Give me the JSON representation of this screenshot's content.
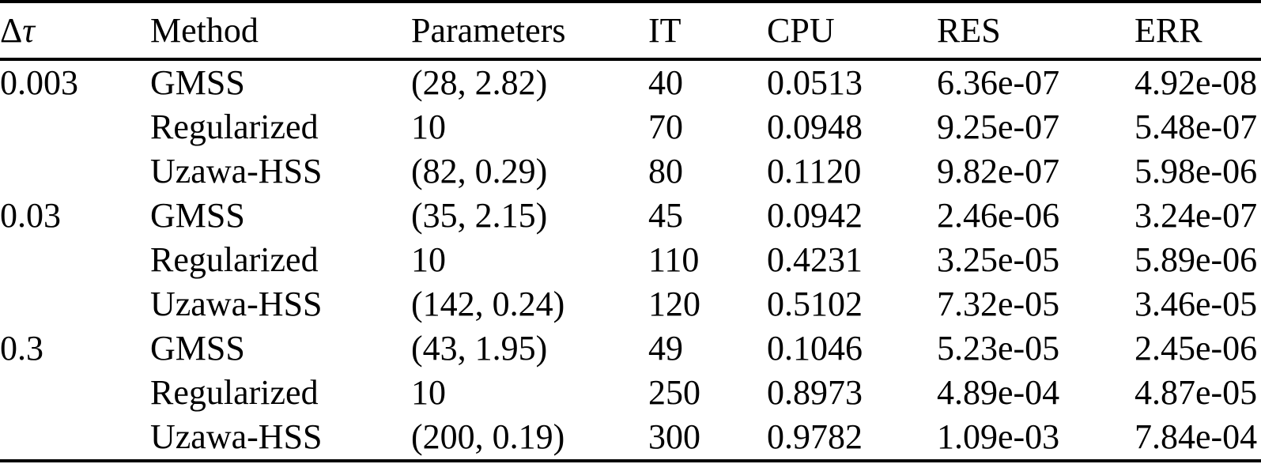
{
  "colors": {
    "text": "#000000",
    "background": "#ffffff",
    "rule": "#000000"
  },
  "table": {
    "header": {
      "dtau_delta": "Δ",
      "dtau_tau": "τ",
      "method": "Method",
      "parameters": "Parameters",
      "it": "IT",
      "cpu": "CPU",
      "res": "RES",
      "err": "ERR"
    },
    "rows": [
      {
        "dtau": "0.003",
        "method": "GMSS",
        "parameters": "(28, 2.82)",
        "it": "40",
        "cpu": "0.0513",
        "res": "6.36e-07",
        "err": "4.92e-08"
      },
      {
        "dtau": "",
        "method": "Regularized",
        "parameters": "10",
        "it": "70",
        "cpu": "0.0948",
        "res": "9.25e-07",
        "err": "5.48e-07"
      },
      {
        "dtau": "",
        "method": "Uzawa-HSS",
        "parameters": "(82, 0.29)",
        "it": "80",
        "cpu": "0.1120",
        "res": "9.82e-07",
        "err": "5.98e-06"
      },
      {
        "dtau": "0.03",
        "method": "GMSS",
        "parameters": "(35, 2.15)",
        "it": "45",
        "cpu": "0.0942",
        "res": "2.46e-06",
        "err": "3.24e-07"
      },
      {
        "dtau": "",
        "method": "Regularized",
        "parameters": "10",
        "it": "110",
        "cpu": "0.4231",
        "res": "3.25e-05",
        "err": "5.89e-06"
      },
      {
        "dtau": "",
        "method": "Uzawa-HSS",
        "parameters": "(142, 0.24)",
        "it": "120",
        "cpu": "0.5102",
        "res": "7.32e-05",
        "err": "3.46e-05"
      },
      {
        "dtau": "0.3",
        "method": "GMSS",
        "parameters": "(43, 1.95)",
        "it": "49",
        "cpu": "0.1046",
        "res": "5.23e-05",
        "err": "2.45e-06"
      },
      {
        "dtau": "",
        "method": "Regularized",
        "parameters": "10",
        "it": "250",
        "cpu": "0.8973",
        "res": "4.89e-04",
        "err": "4.87e-05"
      },
      {
        "dtau": "",
        "method": "Uzawa-HSS",
        "parameters": "(200, 0.19)",
        "it": "300",
        "cpu": "0.9782",
        "res": "1.09e-03",
        "err": "7.84e-04"
      }
    ]
  }
}
